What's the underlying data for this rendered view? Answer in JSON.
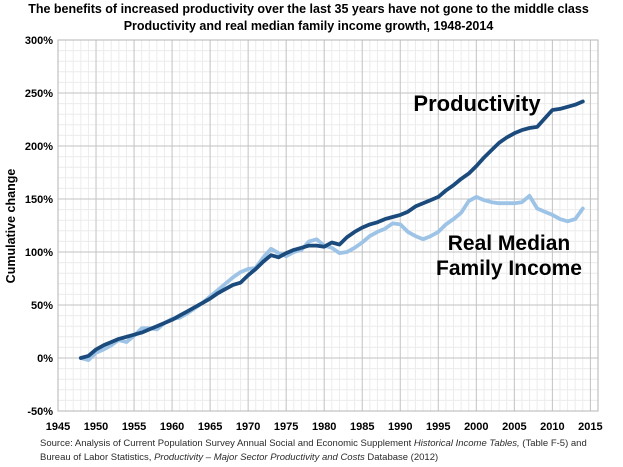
{
  "chart_data": {
    "type": "line",
    "title": "The benefits of increased productivity over the last 35 years have not gone to the middle class",
    "subtitle": "Productivity and real median family income growth, 1948-2014",
    "xlabel": "",
    "ylabel": "Cumulative change",
    "xlim": [
      1945,
      2016
    ],
    "ylim": [
      -50,
      300
    ],
    "x_tick_labels": [
      "1945",
      "1950",
      "1955",
      "1960",
      "1965",
      "1970",
      "1975",
      "1980",
      "1985",
      "1990",
      "1995",
      "2000",
      "2005",
      "2010",
      "2015"
    ],
    "y_tick_labels": [
      "300%",
      "250%",
      "200%",
      "150%",
      "100%",
      "50%",
      "0%",
      "-50%"
    ],
    "grid": "major and minor gridlines on, light gray",
    "legend": "inline text annotations instead of legend box",
    "x": [
      1948,
      1949,
      1950,
      1951,
      1952,
      1953,
      1954,
      1955,
      1956,
      1957,
      1958,
      1959,
      1960,
      1961,
      1962,
      1963,
      1964,
      1965,
      1966,
      1967,
      1968,
      1969,
      1970,
      1971,
      1972,
      1973,
      1974,
      1975,
      1976,
      1977,
      1978,
      1979,
      1980,
      1981,
      1982,
      1983,
      1984,
      1985,
      1986,
      1987,
      1988,
      1989,
      1990,
      1991,
      1992,
      1993,
      1994,
      1995,
      1996,
      1997,
      1998,
      1999,
      2000,
      2001,
      2002,
      2003,
      2004,
      2005,
      2006,
      2007,
      2008,
      2009,
      2010,
      2011,
      2012,
      2013,
      2014
    ],
    "series": [
      {
        "name": "Real Median Family Income",
        "color": "#9dc3e6",
        "values": [
          0,
          -2,
          5,
          8,
          12,
          17,
          15,
          21,
          28,
          28,
          27,
          33,
          37,
          38,
          42,
          47,
          52,
          58,
          64,
          70,
          76,
          81,
          84,
          85,
          95,
          103,
          99,
          96,
          100,
          102,
          110,
          112,
          106,
          104,
          99,
          100,
          104,
          109,
          115,
          119,
          122,
          127,
          126,
          119,
          115,
          112,
          115,
          119,
          126,
          131,
          137,
          148,
          152,
          149,
          147,
          146,
          146,
          146,
          147,
          153,
          141,
          138,
          135,
          131,
          129,
          131,
          141
        ]
      },
      {
        "name": "Productivity",
        "color": "#1b4a7c",
        "values": [
          0,
          2,
          8,
          12,
          15,
          18,
          20,
          22,
          24,
          27,
          30,
          33,
          36,
          40,
          44,
          48,
          52,
          56,
          61,
          65,
          69,
          71,
          78,
          84,
          91,
          97,
          95,
          99,
          102,
          104,
          106,
          106,
          105,
          109,
          107,
          114,
          119,
          123,
          126,
          128,
          131,
          133,
          135,
          138,
          143,
          146,
          149,
          152,
          158,
          163,
          169,
          174,
          181,
          189,
          196,
          203,
          208,
          212,
          215,
          217,
          218,
          226,
          234,
          235,
          237,
          239,
          242
        ]
      }
    ],
    "annotations": {
      "productivity": "Productivity",
      "income_line1": "Real Median",
      "income_line2": "Family Income"
    }
  },
  "source": {
    "line1_segments": [
      {
        "text": "Source:  Analysis of Current Population Survey Annual Social and Economic Supplement ",
        "italic": false
      },
      {
        "text": "Historical Income Tables,",
        "italic": true
      },
      {
        "text": " (Table F-5) and",
        "italic": false
      }
    ],
    "line2_segments": [
      {
        "text": "Bureau of Labor Statistics, ",
        "italic": false
      },
      {
        "text": "Productivity – Major Sector Productivity and Costs ",
        "italic": true
      },
      {
        "text": "Database (2012)",
        "italic": false
      }
    ]
  },
  "colors": {
    "productivity_line": "#1b4a7c",
    "income_line": "#9dc3e6",
    "grid_minor": "#ececec",
    "grid_major": "#c2c2c2",
    "plot_border": "#b5b5b5",
    "text": "#000000"
  }
}
